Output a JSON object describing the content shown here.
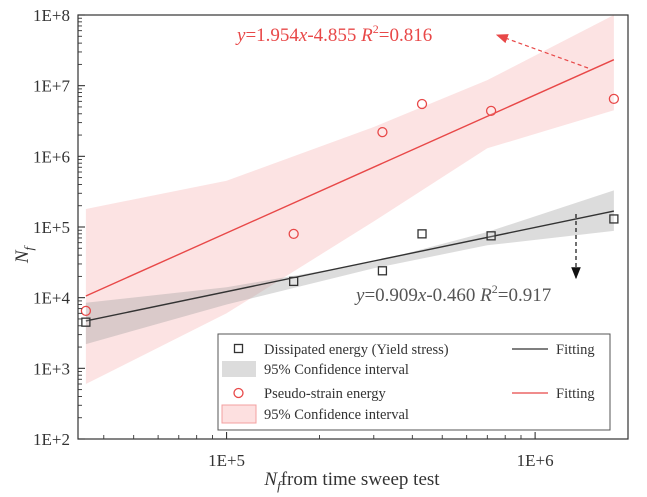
{
  "chart_data": {
    "type": "scatter",
    "title": "",
    "x_scale": "log",
    "y_scale": "log",
    "xlim": [
      33000,
      2000000
    ],
    "ylim": [
      100,
      100000000
    ],
    "x_ticks": [
      {
        "value": 100000,
        "label": "1E+5"
      },
      {
        "value": 1000000,
        "label": "1E+6"
      }
    ],
    "y_ticks": [
      {
        "value": 100,
        "label": "1E+2"
      },
      {
        "value": 1000,
        "label": "1E+3"
      },
      {
        "value": 10000,
        "label": "1E+4"
      },
      {
        "value": 100000,
        "label": "1E+5"
      },
      {
        "value": 1000000,
        "label": "1E+6"
      },
      {
        "value": 10000000,
        "label": "1E+7"
      },
      {
        "value": 100000000,
        "label": "1E+8"
      }
    ],
    "xlabel": {
      "sym": "N",
      "sub": "f",
      "rest": "from time sweep test"
    },
    "ylabel": {
      "sym": "N",
      "sub": "f"
    },
    "series": [
      {
        "name": "Dissipated energy (Yield stress)",
        "marker": "square",
        "color": "#333333",
        "x": [
          35000,
          165000,
          320000,
          430000,
          720000,
          1800000
        ],
        "y": [
          4500,
          17000,
          24000,
          80000,
          75000,
          130000
        ],
        "fit": {
          "label": "Fitting",
          "slope": 0.909,
          "intercept": -0.46,
          "x_range": [
            35000,
            1800000
          ],
          "color": "#333333",
          "ci": {
            "label": "95% Confidence interval",
            "color": "#9a9a9a",
            "upper": [
              [
                35000,
                8500
              ],
              [
                100000,
                14000
              ],
              [
                300000,
                32000
              ],
              [
                700000,
                85000
              ],
              [
                1800000,
                330000
              ]
            ],
            "lower": [
              [
                35000,
                2200
              ],
              [
                100000,
                8000
              ],
              [
                300000,
                26000
              ],
              [
                700000,
                55000
              ],
              [
                1800000,
                88000
              ]
            ]
          }
        },
        "equation": "y=0.909x-0.460 R²=0.917",
        "equation_parts": {
          "a": "y",
          "b": "=0.909",
          "c": "x",
          "d": "-0.460 ",
          "e": "R",
          "f": "2",
          "g": "=0.917"
        }
      },
      {
        "name": "Pseudo-strain energy",
        "marker": "circle",
        "color": "#e84848",
        "x": [
          35000,
          165000,
          320000,
          430000,
          720000,
          1800000
        ],
        "y": [
          6500,
          80000,
          2200000,
          5500000,
          4400000,
          6500000
        ],
        "fit": {
          "label": "Fitting",
          "slope": 1.954,
          "intercept": -4.855,
          "x_range": [
            35000,
            1800000
          ],
          "color": "#e84848",
          "ci": {
            "label": "95% Confidence interval",
            "color": "#f7b0b0",
            "upper": [
              [
                35000,
                180000
              ],
              [
                100000,
                450000
              ],
              [
                300000,
                2600000
              ],
              [
                700000,
                12000000
              ],
              [
                1800000,
                100000000
              ]
            ],
            "lower": [
              [
                35000,
                600
              ],
              [
                100000,
                6000
              ],
              [
                300000,
                120000
              ],
              [
                700000,
                1300000
              ],
              [
                1800000,
                4500000
              ]
            ]
          }
        },
        "equation": "y=1.954x-4.855 R²=0.816",
        "equation_parts": {
          "a": "y",
          "b": "=1.954",
          "c": "x",
          "d": "-4.855 ",
          "e": "R",
          "f": "2",
          "g": "=0.816"
        }
      }
    ],
    "legend": {
      "position": "bottom-right",
      "rows": [
        {
          "kind": "square",
          "label": "Dissipated energy (Yield stress)",
          "fit_label": "Fitting"
        },
        {
          "kind": "band-gray",
          "label": "95% Confidence interval"
        },
        {
          "kind": "circle",
          "label": "Pseudo-strain energy",
          "fit_label": "Fitting"
        },
        {
          "kind": "band-red",
          "label": "95% Confidence interval"
        }
      ]
    },
    "grid": false
  }
}
